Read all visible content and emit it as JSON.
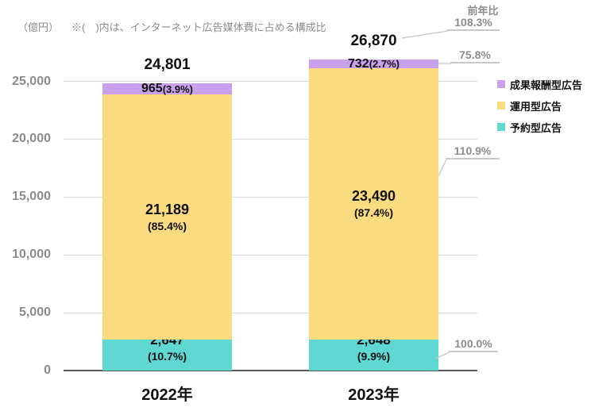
{
  "header": {
    "unit_label": "（億円）",
    "note": "※(　)内は、インターネット広告媒体費に占める構成比",
    "yoy_title": "前年比"
  },
  "chart_data": {
    "type": "bar",
    "stacked": true,
    "categories": [
      "2022年",
      "2023年"
    ],
    "series": [
      {
        "name": "予約型広告",
        "color": "#5FD8D1",
        "values": [
          2647,
          2648
        ],
        "value_labels": [
          "2,647",
          "2,648"
        ],
        "share_labels": [
          "(10.7%)",
          "(9.9%)"
        ],
        "yoy": "100.0%"
      },
      {
        "name": "運用型広告",
        "color": "#FBDB80",
        "values": [
          21189,
          23490
        ],
        "value_labels": [
          "21,189",
          "23,490"
        ],
        "share_labels": [
          "(85.4%)",
          "(87.4%)"
        ],
        "yoy": "110.9%"
      },
      {
        "name": "成果報酬型広告",
        "color": "#C9A0EB",
        "values": [
          965,
          732
        ],
        "value_labels": [
          "965",
          "732"
        ],
        "share_labels": [
          "(3.9%)",
          "(2.7%)"
        ],
        "yoy": "75.8%"
      }
    ],
    "totals": {
      "values": [
        24801,
        26870
      ],
      "labels": [
        "24,801",
        "26,870"
      ],
      "yoy": "108.3%"
    },
    "ylim": [
      0,
      25000
    ],
    "yticks": [
      "0",
      "5,000",
      "10,000",
      "15,000",
      "20,000",
      "25,000"
    ],
    "grid": true,
    "legend_position": "right",
    "legend_order_series_indexes": [
      2,
      1,
      0
    ]
  }
}
